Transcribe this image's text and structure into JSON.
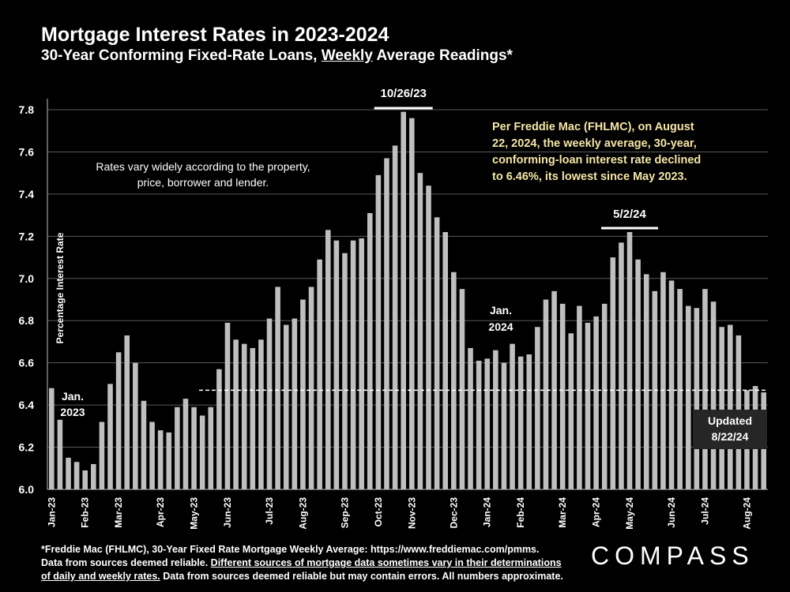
{
  "header": {
    "title": "Mortgage Interest Rates in 2023-2024",
    "subtitle_pre": "30-Year Conforming Fixed-Rate Loans, ",
    "subtitle_emph": "Weekly",
    "subtitle_post": " Average Readings*"
  },
  "chart_data": {
    "type": "bar",
    "title": "Mortgage Interest Rates in 2023-2024",
    "ylabel": "Percentage Interest  Rate",
    "xlabel": "",
    "ylim": [
      6.0,
      7.8
    ],
    "yticks": [
      "6.0",
      "6.2",
      "6.4",
      "6.6",
      "6.8",
      "7.0",
      "7.2",
      "7.4",
      "7.6",
      "7.8"
    ],
    "grid": true,
    "bar_color": "#bfbfbf",
    "values": [
      6.48,
      6.33,
      6.15,
      6.13,
      6.09,
      6.12,
      6.32,
      6.5,
      6.65,
      6.73,
      6.6,
      6.42,
      6.32,
      6.28,
      6.27,
      6.39,
      6.43,
      6.39,
      6.35,
      6.39,
      6.57,
      6.79,
      6.71,
      6.69,
      6.67,
      6.71,
      6.81,
      6.96,
      6.78,
      6.81,
      6.9,
      6.96,
      7.09,
      7.23,
      7.18,
      7.12,
      7.18,
      7.19,
      7.31,
      7.49,
      7.57,
      7.63,
      7.79,
      7.76,
      7.5,
      7.44,
      7.29,
      7.22,
      7.03,
      6.95,
      6.67,
      6.61,
      6.62,
      6.66,
      6.6,
      6.69,
      6.63,
      6.64,
      6.77,
      6.9,
      6.94,
      6.88,
      6.74,
      6.87,
      6.79,
      6.82,
      6.88,
      7.1,
      7.17,
      7.22,
      7.09,
      7.02,
      6.94,
      7.03,
      6.99,
      6.95,
      6.87,
      6.86,
      6.95,
      6.89,
      6.77,
      6.78,
      6.73,
      6.47,
      6.49,
      6.46
    ],
    "month_labels": [
      "Jan-23",
      "Feb-23",
      "Mar-23",
      "Apr-23",
      "May-23",
      "Jun-23",
      "Jul-23",
      "Aug-23",
      "Sep-23",
      "Oct-23",
      "Nov-23",
      "Dec-23",
      "Jan-24",
      "Feb-24",
      "Mar-24",
      "Apr-24",
      "May-24",
      "Jun-24",
      "Jul-24",
      "Aug-24"
    ],
    "month_start_index": [
      0,
      4,
      8,
      13,
      17,
      21,
      26,
      30,
      35,
      39,
      43,
      48,
      52,
      56,
      61,
      65,
      69,
      74,
      78,
      83
    ],
    "reference_line": {
      "value": 6.47,
      "style": "dashed"
    },
    "annotations": {
      "peak_2023": {
        "label": "10/26/23",
        "bar_index": 42
      },
      "peak_2024": {
        "label": "5/2/24",
        "bar_index": 69
      },
      "jan_2023": [
        "Jan.",
        "2023"
      ],
      "jan_2024": [
        "Jan.",
        "2024"
      ],
      "note_left": [
        "Rates vary widely according to the property,",
        "price, borrower and lender."
      ],
      "note_right": [
        "Per Freddie Mac (FHLMC), on August",
        "22, 2024, the weekly average, 30-year,",
        "conforming-loan interest rate declined",
        "to 6.46%, its lowest since May 2023."
      ],
      "updated": [
        "Updated",
        "8/22/24"
      ]
    }
  },
  "colors": {
    "background": "#000000",
    "text": "#ffffff",
    "bar": "#bfbfbf",
    "grid": "#595959",
    "note_right": "#f5e6a8",
    "updated_box": "#262626"
  },
  "footer": {
    "line1": "*Freddie Mac (FHLMC), 30-Year Fixed Rate Mortgage Weekly Average:   https://www.freddiemac.com/pmms.",
    "line2_pre": "Data from sources deemed reliable. ",
    "line2_underlined": "Different sources of mortgage data sometimes vary in their determinations",
    "line3_underlined": "of daily and weekly rates.",
    "line3_post": " Data from sources deemed reliable but may contain errors. All numbers approximate."
  },
  "logo": {
    "text": "COMPASS",
    "icon": "compass-o-icon"
  }
}
